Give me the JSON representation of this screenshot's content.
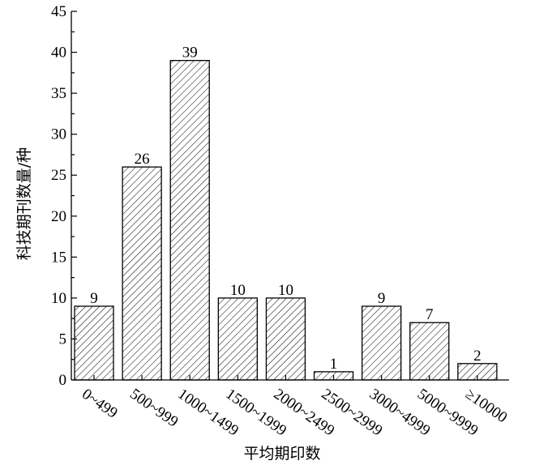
{
  "chart_data": {
    "type": "bar",
    "xlabel": "平均期印数",
    "ylabel": "科技期刊数量/种",
    "categories": [
      "0~499",
      "500~999",
      "1000~1499",
      "1500~1999",
      "2000~2499",
      "2500~2999",
      "3000~4999",
      "5000~9999",
      "≥10000"
    ],
    "values": [
      9,
      26,
      39,
      10,
      10,
      1,
      9,
      7,
      2
    ],
    "ylim": [
      0,
      45
    ],
    "yticks": [
      0,
      5,
      10,
      15,
      20,
      25,
      30,
      35,
      40,
      45
    ],
    "grid": false,
    "legend": "none",
    "bar_fill": "diagonal hatch",
    "colors": {
      "stroke": "#000000",
      "background": "#ffffff"
    }
  }
}
